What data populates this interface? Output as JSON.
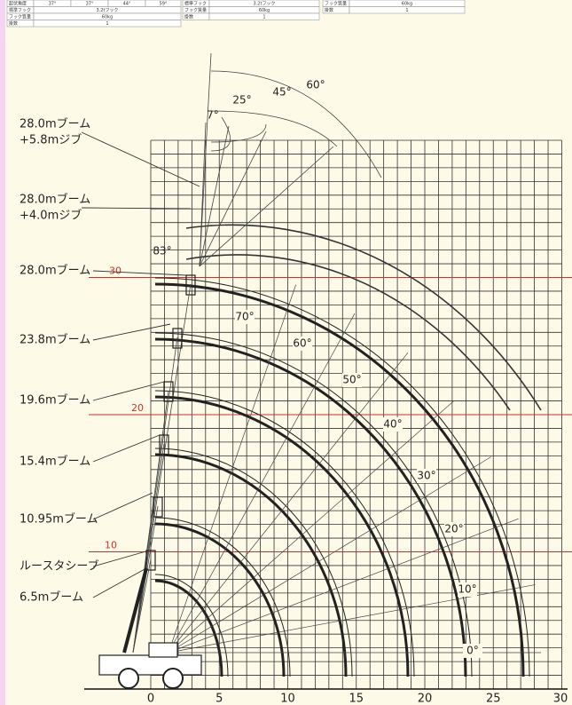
{
  "top_table": {
    "left": [
      [
        "起伏角度",
        "37°",
        "37°",
        "44°",
        "59°"
      ],
      [
        "標準フック",
        "3.2tフック"
      ],
      [
        "フック質量",
        "60kg"
      ],
      [
        "掛数",
        "1"
      ]
    ],
    "middle": [
      [
        "標準フック",
        "3.2tフック"
      ],
      [
        "フック質量",
        "60kg"
      ],
      [
        "掛数",
        "1"
      ]
    ],
    "right": [
      [
        "フック質量",
        "60kg"
      ],
      [
        "掛数",
        "1"
      ]
    ]
  },
  "boom_labels": [
    [
      "28.0mブーム",
      "+5.8mジブ"
    ],
    [
      "28.0mブーム",
      "+4.0mジブ"
    ],
    [
      "28.0mブーム"
    ],
    [
      "23.8mブーム"
    ],
    [
      "19.6mブーム"
    ],
    [
      "15.4mブーム"
    ],
    [
      "10.95mブーム"
    ],
    [
      "ルースタシーブ"
    ],
    [
      "6.5mブーム"
    ]
  ],
  "boom_angles": [
    "70°",
    "60°",
    "50°",
    "40°",
    "30°",
    "20°",
    "10°",
    "0°"
  ],
  "jib_angles": [
    "60°",
    "45°",
    "25°",
    "7°"
  ],
  "elevation_angle": "83°",
  "x_ticks": [
    0,
    5,
    10,
    15,
    20,
    25,
    30
  ],
  "height_marks": [
    30,
    20,
    10
  ]
}
